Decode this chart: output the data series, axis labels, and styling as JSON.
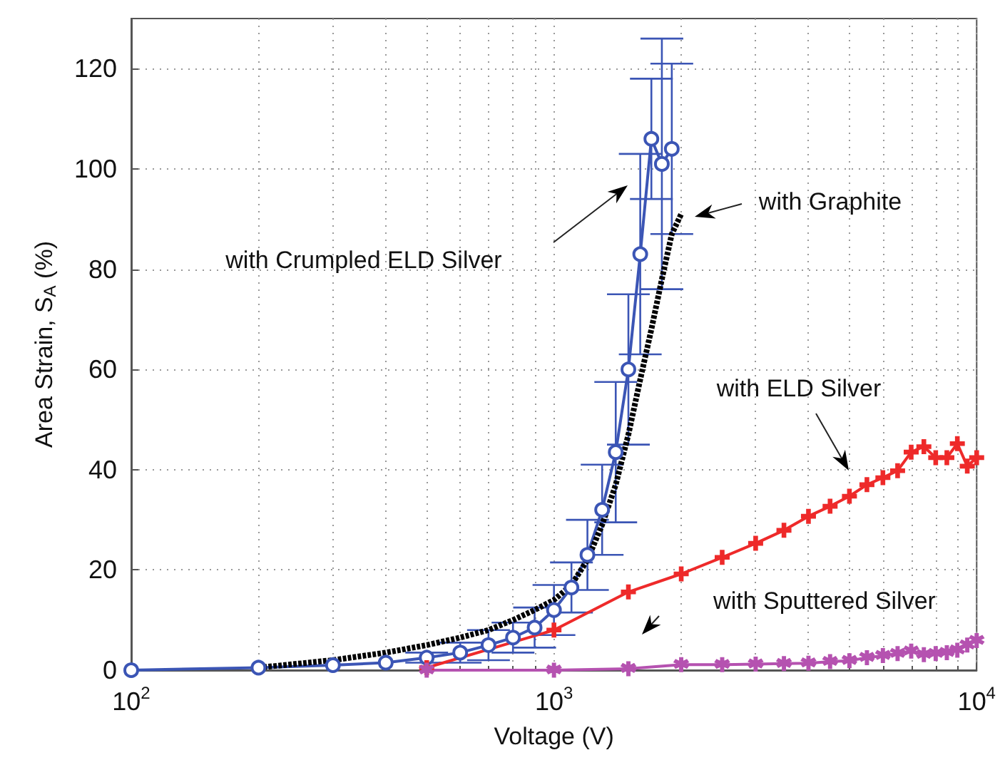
{
  "chart_data": {
    "type": "line",
    "xlabel": "Voltage (V)",
    "ylabel": "Area Strain, S$_{A}$ (%)",
    "log": "x",
    "grid": true,
    "xlim": [
      100,
      10000
    ],
    "xticks": [
      {
        "value": 100,
        "label": "10$^{2}$"
      },
      {
        "value": 1000,
        "label": "10$^{3}$"
      },
      {
        "value": 10000,
        "label": "10$^{4}$"
      }
    ],
    "ylim": [
      0,
      130
    ],
    "yticks": [
      0,
      20,
      40,
      60,
      80,
      100,
      120
    ],
    "series": [
      {
        "color": "#3b55b5",
        "marker": "circle",
        "line_style": "solid",
        "x": [
          100,
          200,
          300,
          400,
          500,
          600,
          700,
          800,
          900,
          1000,
          1100,
          1200,
          1300,
          1400,
          1500,
          1600,
          1700,
          1800,
          1900
        ],
        "values": [
          0,
          0.5,
          1,
          1.5,
          2.5,
          3.5,
          5,
          6.5,
          8.5,
          12,
          16.5,
          23,
          32,
          43.5,
          60,
          83,
          106,
          101,
          104
        ],
        "errors": [
          null,
          null,
          null,
          null,
          1,
          2,
          3,
          3,
          4,
          5,
          5,
          7,
          9,
          14,
          15,
          20,
          12,
          25,
          17
        ]
      },
      {
        "color": "#000000",
        "marker": "none",
        "line_style": "dashed",
        "x": [
          200,
          300,
          400,
          500,
          600,
          700,
          800,
          900,
          1000,
          1100,
          1200,
          1300,
          1400,
          1500,
          1600,
          1700,
          1800,
          1900,
          2000
        ],
        "values": [
          0.5,
          2,
          3.5,
          5,
          6.5,
          8,
          10,
          12,
          14,
          17,
          22,
          29,
          37,
          47,
          58,
          68,
          78,
          87,
          91
        ]
      },
      {
        "color": "#ee2a2a",
        "marker": "cross",
        "line_style": "solid",
        "x": [
          500,
          1000,
          1500,
          2000,
          2500,
          3000,
          3500,
          4000,
          4500,
          5000,
          5500,
          6000,
          6500,
          7000,
          7500,
          8000,
          8500,
          9000,
          9500,
          10000
        ],
        "values": [
          0.5,
          8,
          15.6,
          19.2,
          22.5,
          25.3,
          27.9,
          30.7,
          32.7,
          34.7,
          37,
          38.4,
          39.8,
          43.5,
          44.6,
          42.4,
          42.4,
          45.2,
          40.7,
          42.4
        ]
      },
      {
        "color": "#b552b0",
        "marker": "star",
        "line_style": "solid",
        "x": [
          500,
          1000,
          1500,
          2000,
          2500,
          3000,
          3500,
          4000,
          4500,
          5000,
          5500,
          6000,
          6500,
          7000,
          7500,
          8000,
          8500,
          9000,
          9500,
          10000
        ],
        "values": [
          0,
          0,
          0.3,
          1.1,
          1.1,
          1.2,
          1.3,
          1.4,
          1.7,
          1.9,
          2.5,
          2.9,
          3.3,
          3.8,
          3.1,
          3.3,
          3.5,
          4,
          5,
          5.9
        ]
      }
    ],
    "annotations": [
      "with Crumpled ELD Silver",
      "with Graphite",
      "with ELD Silver",
      "with Sputtered Silver"
    ]
  }
}
